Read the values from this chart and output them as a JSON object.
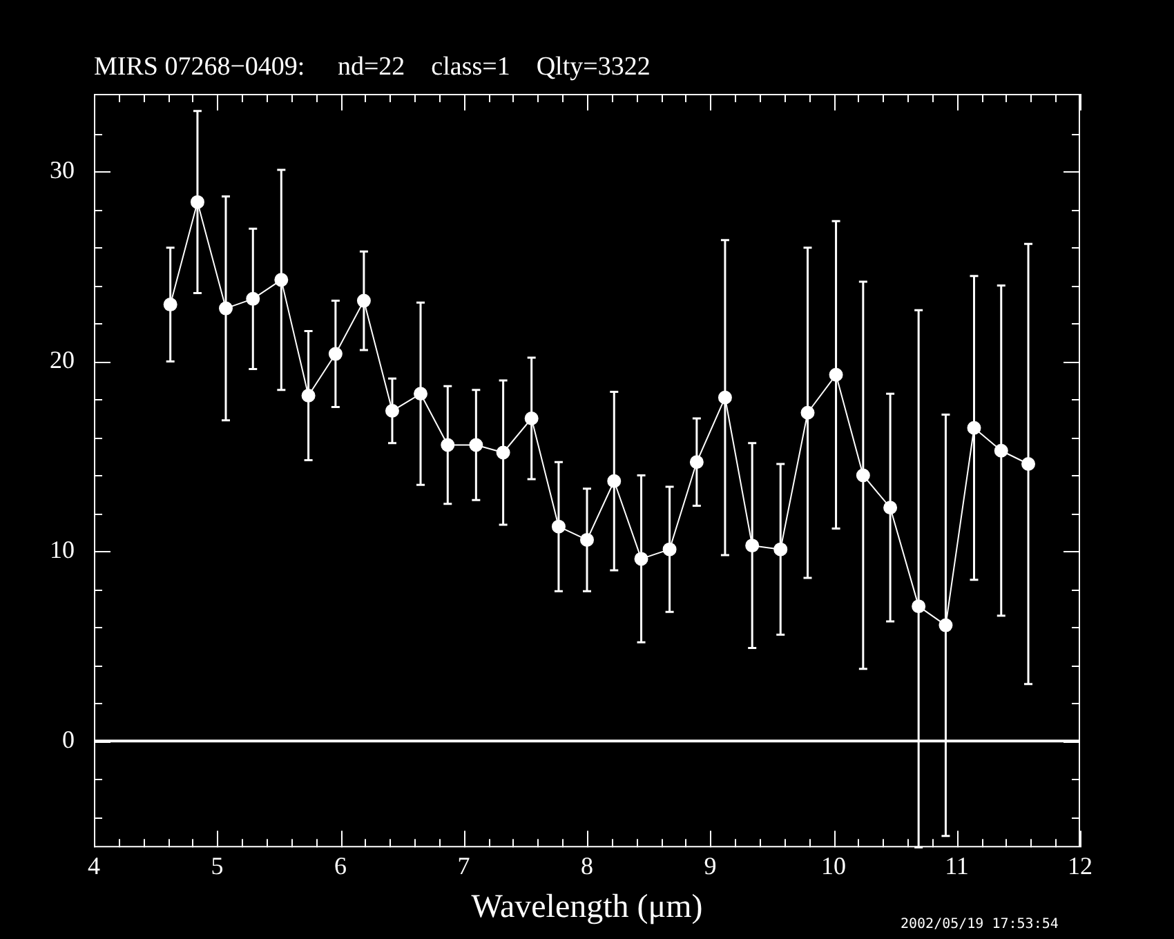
{
  "chart_data": {
    "type": "line",
    "title": "MIRS 07268−0409:     nd=22    class=1    Qlty=3322",
    "xlabel": "Wavelength (μm)",
    "annotations": [
      "2002/05/19 17:53:54"
    ],
    "x": [
      4.62,
      4.84,
      5.07,
      5.29,
      5.52,
      5.74,
      5.96,
      6.19,
      6.42,
      6.65,
      6.87,
      7.1,
      7.32,
      7.55,
      7.77,
      8.0,
      8.22,
      8.44,
      8.67,
      8.89,
      9.12,
      9.34,
      9.57,
      9.79,
      10.02,
      10.24,
      10.46,
      10.69,
      10.91,
      11.14,
      11.36,
      11.58
    ],
    "series": [
      {
        "color": "#ffffff",
        "values": [
          23.0,
          28.4,
          22.8,
          23.3,
          24.3,
          18.2,
          20.4,
          23.2,
          17.4,
          18.3,
          15.6,
          15.6,
          15.2,
          17.0,
          11.3,
          10.6,
          13.7,
          9.6,
          10.1,
          14.7,
          18.1,
          10.3,
          10.1,
          17.3,
          19.3,
          14.0,
          12.3,
          7.1,
          6.1,
          16.5,
          15.3,
          14.6
        ],
        "errors": [
          3.0,
          4.8,
          5.9,
          3.7,
          5.8,
          3.4,
          2.8,
          2.6,
          1.7,
          4.8,
          3.1,
          2.9,
          3.8,
          3.2,
          3.4,
          2.7,
          4.7,
          4.4,
          3.3,
          2.3,
          8.3,
          5.4,
          4.5,
          8.7,
          8.1,
          10.2,
          6.0,
          [
            -5.6,
            22.7
          ],
          11.1,
          8.0,
          8.7,
          11.6
        ]
      }
    ],
    "marker": "circle",
    "line_style": "solid",
    "grid": false,
    "legend": false,
    "xlim": [
      4,
      12
    ],
    "ylim": [
      -5.6,
      34.1
    ],
    "xticks": [
      4,
      {
        "value": 4.2,
        "label": null
      },
      {
        "value": 4.4,
        "label": null
      },
      {
        "value": 4.6,
        "label": null
      },
      {
        "value": 4.8,
        "label": null
      },
      5,
      {
        "value": 5.2,
        "label": null
      },
      {
        "value": 5.4,
        "label": null
      },
      {
        "value": 5.6,
        "label": null
      },
      {
        "value": 5.8,
        "label": null
      },
      6,
      {
        "value": 6.2,
        "label": null
      },
      {
        "value": 6.4,
        "label": null
      },
      {
        "value": 6.6,
        "label": null
      },
      {
        "value": 6.8,
        "label": null
      },
      7,
      {
        "value": 7.2,
        "label": null
      },
      {
        "value": 7.4,
        "label": null
      },
      {
        "value": 7.6,
        "label": null
      },
      {
        "value": 7.8,
        "label": null
      },
      8,
      {
        "value": 8.2,
        "label": null
      },
      {
        "value": 8.4,
        "label": null
      },
      {
        "value": 8.6,
        "label": null
      },
      {
        "value": 8.8,
        "label": null
      },
      9,
      {
        "value": 9.2,
        "label": null
      },
      {
        "value": 9.4,
        "label": null
      },
      {
        "value": 9.6,
        "label": null
      },
      {
        "value": 9.8,
        "label": null
      },
      10,
      {
        "value": 10.2,
        "label": null
      },
      {
        "value": 10.4,
        "label": null
      },
      {
        "value": 10.6,
        "label": null
      },
      {
        "value": 10.8,
        "label": null
      },
      11,
      {
        "value": 11.2,
        "label": null
      },
      {
        "value": 11.4,
        "label": null
      },
      {
        "value": 11.6,
        "label": null
      },
      {
        "value": 11.8,
        "label": null
      },
      12
    ],
    "yticks": [
      {
        "value": -4,
        "label": null
      },
      {
        "value": -2,
        "label": null
      },
      0,
      {
        "value": 2,
        "label": null
      },
      {
        "value": 4,
        "label": null
      },
      {
        "value": 6,
        "label": null
      },
      {
        "value": 8,
        "label": null
      },
      10,
      {
        "value": 12,
        "label": null
      },
      {
        "value": 14,
        "label": null
      },
      {
        "value": 16,
        "label": null
      },
      {
        "value": 18,
        "label": null
      },
      20,
      {
        "value": 22,
        "label": null
      },
      {
        "value": 24,
        "label": null
      },
      {
        "value": 26,
        "label": null
      },
      {
        "value": 28,
        "label": null
      },
      30,
      {
        "value": 32,
        "label": null
      }
    ],
    "ref_lines": [
      {
        "axis": "y",
        "value": 0,
        "color": "#ffffff"
      }
    ]
  }
}
